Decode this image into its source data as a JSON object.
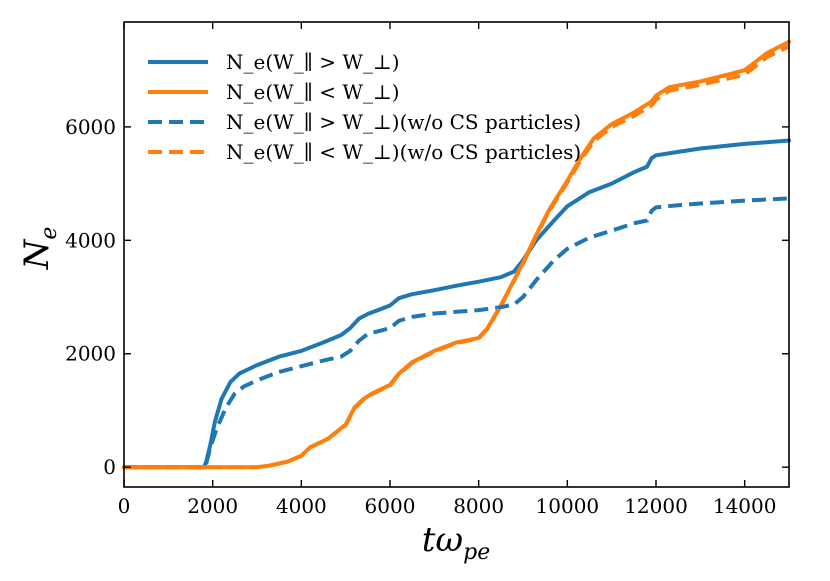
{
  "chart_data": {
    "type": "line",
    "title": "",
    "xlabel": "tω_pe",
    "ylabel": "N_e",
    "xlim": [
      0,
      15000
    ],
    "ylim": [
      -350,
      7850
    ],
    "xticks": [
      0,
      2000,
      4000,
      6000,
      8000,
      10000,
      12000,
      14000
    ],
    "yticks": [
      0,
      2000,
      4000,
      6000
    ],
    "grid": false,
    "legend_position": "top-left",
    "series": [
      {
        "name": "N_e(W_∥ > W_⊥)",
        "color": "#1f77b4",
        "style": "solid",
        "x": [
          0,
          1800,
          1850,
          1950,
          2050,
          2200,
          2400,
          2600,
          3000,
          3500,
          4000,
          4500,
          4900,
          5100,
          5300,
          5500,
          6000,
          6200,
          6500,
          7000,
          7500,
          8000,
          8500,
          8800,
          9000,
          9300,
          9700,
          10000,
          10500,
          11000,
          11500,
          11800,
          11900,
          12000,
          12500,
          13000,
          14000,
          15000
        ],
        "y": [
          0,
          0,
          80,
          400,
          800,
          1200,
          1500,
          1650,
          1800,
          1950,
          2050,
          2200,
          2330,
          2450,
          2620,
          2700,
          2850,
          2980,
          3050,
          3120,
          3200,
          3270,
          3350,
          3450,
          3650,
          4000,
          4350,
          4600,
          4850,
          5000,
          5200,
          5300,
          5450,
          5500,
          5560,
          5620,
          5700,
          5760
        ]
      },
      {
        "name": "N_e(W_∥ < W_⊥)",
        "color": "#ff7f0e",
        "style": "solid",
        "x": [
          0,
          2000,
          3000,
          3300,
          3700,
          4000,
          4200,
          4600,
          5000,
          5200,
          5400,
          5600,
          6000,
          6200,
          6500,
          7000,
          7500,
          8000,
          8200,
          8500,
          8800,
          9000,
          9300,
          9600,
          10000,
          10300,
          10600,
          11000,
          11500,
          11900,
          12000,
          12300,
          13000,
          13500,
          14000,
          14500,
          15000
        ],
        "y": [
          0,
          0,
          0,
          30,
          100,
          200,
          350,
          500,
          750,
          1050,
          1200,
          1300,
          1450,
          1650,
          1850,
          2050,
          2200,
          2280,
          2450,
          2850,
          3300,
          3600,
          4100,
          4550,
          5050,
          5450,
          5800,
          6050,
          6250,
          6450,
          6550,
          6700,
          6800,
          6900,
          7000,
          7300,
          7500
        ]
      },
      {
        "name": "N_e(W_∥ > W_⊥)(w/o CS particles)",
        "color": "#1f77b4",
        "style": "dashed",
        "x": [
          0,
          1800,
          1850,
          1950,
          2100,
          2300,
          2500,
          2700,
          3000,
          3500,
          4000,
          4500,
          4900,
          5100,
          5300,
          5500,
          6000,
          6200,
          6500,
          7000,
          7500,
          8000,
          8500,
          8800,
          9000,
          9300,
          9700,
          10000,
          10500,
          11000,
          11500,
          11800,
          11900,
          12000,
          12500,
          13000,
          14000,
          15000
        ],
        "y": [
          0,
          0,
          50,
          350,
          700,
          1050,
          1300,
          1420,
          1530,
          1680,
          1780,
          1880,
          1950,
          2050,
          2230,
          2350,
          2450,
          2580,
          2650,
          2710,
          2740,
          2770,
          2820,
          2870,
          3000,
          3300,
          3650,
          3850,
          4050,
          4170,
          4300,
          4350,
          4520,
          4580,
          4620,
          4650,
          4700,
          4740
        ]
      },
      {
        "name": "N_e(W_∥ < W_⊥)(w/o CS particles)",
        "color": "#ff7f0e",
        "style": "dashed",
        "x": [
          0,
          2000,
          3000,
          3300,
          3700,
          4000,
          4200,
          4600,
          5000,
          5200,
          5400,
          5600,
          6000,
          6200,
          6500,
          7000,
          7500,
          8000,
          8200,
          8500,
          8800,
          9000,
          9300,
          9600,
          10000,
          10300,
          10600,
          11000,
          11500,
          11900,
          12000,
          12300,
          13000,
          13500,
          14000,
          14500,
          15000
        ],
        "y": [
          0,
          0,
          0,
          30,
          100,
          200,
          350,
          500,
          740,
          1040,
          1190,
          1290,
          1440,
          1640,
          1840,
          2040,
          2190,
          2270,
          2440,
          2840,
          3290,
          3590,
          4080,
          4530,
          5020,
          5410,
          5750,
          6000,
          6190,
          6380,
          6480,
          6640,
          6740,
          6830,
          6920,
          7230,
          7420
        ]
      }
    ]
  }
}
